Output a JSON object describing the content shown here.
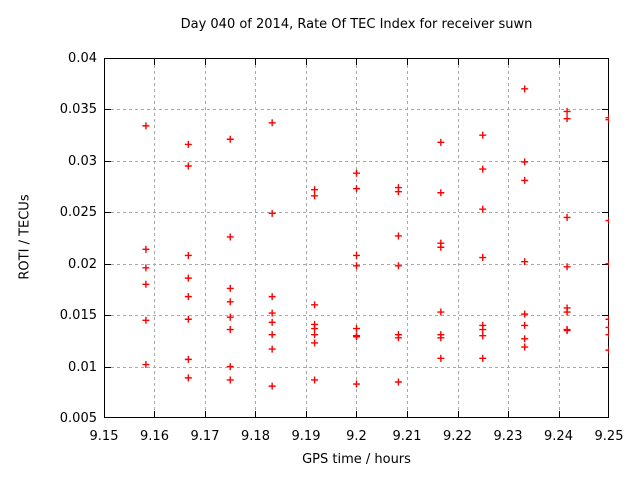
{
  "chart_data": {
    "type": "scatter",
    "title": "Day 040 of 2014, Rate Of TEC Index for receiver suwn",
    "xlabel": "GPS time / hours",
    "ylabel": "ROTI / TECUs",
    "xlim": [
      9.15,
      9.25
    ],
    "ylim": [
      0.005,
      0.04
    ],
    "xticks": [
      9.15,
      9.16,
      9.17,
      9.18,
      9.19,
      9.2,
      9.21,
      9.22,
      9.23,
      9.24,
      9.25
    ],
    "xtick_labels": [
      "9.15",
      "9.16",
      "9.17",
      "9.18",
      "9.19",
      "9.2",
      "9.21",
      "9.22",
      "9.23",
      "9.24",
      "9.25"
    ],
    "yticks": [
      0.005,
      0.01,
      0.015,
      0.02,
      0.025,
      0.03,
      0.035,
      0.04
    ],
    "ytick_labels": [
      "0.005",
      "0.01",
      "0.015",
      "0.02",
      "0.025",
      "0.03",
      "0.035",
      "0.04"
    ],
    "grid": true,
    "legend": "none",
    "marker": "plus",
    "colors": {
      "marker": "#ff0000",
      "border": "#000000",
      "grid": "#a8a8a8",
      "text": "#000000",
      "background": "#ffffff"
    },
    "series": [
      {
        "name": "ROTI",
        "points": [
          [
            9.1583,
            0.0334
          ],
          [
            9.1583,
            0.0214
          ],
          [
            9.1583,
            0.0196
          ],
          [
            9.1583,
            0.018
          ],
          [
            9.1583,
            0.0145
          ],
          [
            9.1583,
            0.0102
          ],
          [
            9.1667,
            0.0316
          ],
          [
            9.1667,
            0.0295
          ],
          [
            9.1667,
            0.0208
          ],
          [
            9.1667,
            0.0186
          ],
          [
            9.1667,
            0.0168
          ],
          [
            9.1667,
            0.0146
          ],
          [
            9.1667,
            0.0107
          ],
          [
            9.1667,
            0.0089
          ],
          [
            9.175,
            0.0321
          ],
          [
            9.175,
            0.0226
          ],
          [
            9.175,
            0.0176
          ],
          [
            9.175,
            0.0163
          ],
          [
            9.175,
            0.0148
          ],
          [
            9.175,
            0.0136
          ],
          [
            9.175,
            0.01
          ],
          [
            9.175,
            0.0087
          ],
          [
            9.1833,
            0.0337
          ],
          [
            9.1833,
            0.0249
          ],
          [
            9.1833,
            0.0168
          ],
          [
            9.1833,
            0.0152
          ],
          [
            9.1833,
            0.0143
          ],
          [
            9.1833,
            0.0131
          ],
          [
            9.1833,
            0.0117
          ],
          [
            9.1833,
            0.0081
          ],
          [
            9.1917,
            0.0272
          ],
          [
            9.1917,
            0.0266
          ],
          [
            9.1917,
            0.016
          ],
          [
            9.1917,
            0.0141
          ],
          [
            9.1917,
            0.0137
          ],
          [
            9.1917,
            0.0131
          ],
          [
            9.1917,
            0.0123
          ],
          [
            9.1917,
            0.0087
          ],
          [
            9.2,
            0.0288
          ],
          [
            9.2,
            0.0273
          ],
          [
            9.2,
            0.0208
          ],
          [
            9.2,
            0.0198
          ],
          [
            9.2,
            0.0137
          ],
          [
            9.2,
            0.013
          ],
          [
            9.2,
            0.0129
          ],
          [
            9.2,
            0.0083
          ],
          [
            9.2083,
            0.0274
          ],
          [
            9.2083,
            0.027
          ],
          [
            9.2083,
            0.0227
          ],
          [
            9.2083,
            0.0198
          ],
          [
            9.2083,
            0.0131
          ],
          [
            9.2083,
            0.0128
          ],
          [
            9.2083,
            0.0085
          ],
          [
            9.2167,
            0.0318
          ],
          [
            9.2167,
            0.0269
          ],
          [
            9.2167,
            0.022
          ],
          [
            9.2167,
            0.0216
          ],
          [
            9.2167,
            0.0153
          ],
          [
            9.2167,
            0.0131
          ],
          [
            9.2167,
            0.0128
          ],
          [
            9.2167,
            0.0108
          ],
          [
            9.225,
            0.0325
          ],
          [
            9.225,
            0.0292
          ],
          [
            9.225,
            0.0253
          ],
          [
            9.225,
            0.0206
          ],
          [
            9.225,
            0.014
          ],
          [
            9.225,
            0.0136
          ],
          [
            9.225,
            0.013
          ],
          [
            9.225,
            0.0108
          ],
          [
            9.2333,
            0.037
          ],
          [
            9.2333,
            0.0299
          ],
          [
            9.2333,
            0.0281
          ],
          [
            9.2333,
            0.0202
          ],
          [
            9.2333,
            0.0151
          ],
          [
            9.2333,
            0.014
          ],
          [
            9.2333,
            0.0127
          ],
          [
            9.2333,
            0.0119
          ],
          [
            9.2417,
            0.0348
          ],
          [
            9.2417,
            0.0341
          ],
          [
            9.2417,
            0.0245
          ],
          [
            9.2417,
            0.0197
          ],
          [
            9.2417,
            0.0157
          ],
          [
            9.2417,
            0.0153
          ],
          [
            9.2417,
            0.0136
          ],
          [
            9.2417,
            0.0135
          ],
          [
            9.25,
            0.0342
          ],
          [
            9.25,
            0.034
          ],
          [
            9.25,
            0.0242
          ],
          [
            9.25,
            0.02
          ],
          [
            9.25,
            0.0146
          ],
          [
            9.25,
            0.0138
          ],
          [
            9.25,
            0.0131
          ],
          [
            9.25,
            0.0116
          ]
        ]
      }
    ]
  }
}
